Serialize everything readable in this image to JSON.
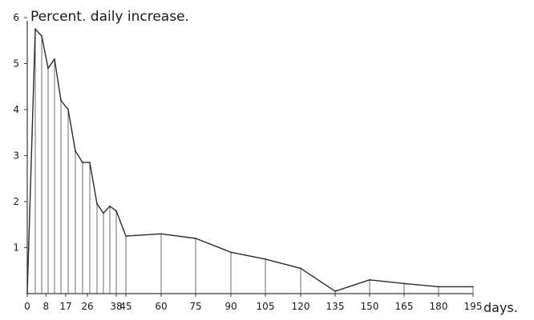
{
  "chart_data": {
    "type": "line",
    "title": "Percent. daily increase.",
    "xlabel": "days.",
    "ylabel": "",
    "x_ticks": [
      0,
      8,
      17,
      26,
      38,
      45,
      60,
      75,
      90,
      105,
      120,
      135,
      150,
      165,
      180,
      195
    ],
    "y_ticks": [
      1,
      2,
      3,
      4,
      5,
      6
    ],
    "xlim": [
      0,
      195
    ],
    "ylim": [
      0,
      6
    ],
    "grid": false,
    "vertical_lines_at_points": true,
    "x": [
      0,
      3,
      6,
      9,
      12,
      15,
      18,
      21,
      24,
      27,
      30,
      33,
      36,
      38,
      45,
      60,
      75,
      90,
      105,
      120,
      135,
      150,
      165,
      180,
      195
    ],
    "values": [
      0,
      5.75,
      5.6,
      4.9,
      5.1,
      4.2,
      4.0,
      3.1,
      2.85,
      2.85,
      1.95,
      1.75,
      1.9,
      1.8,
      1.25,
      1.3,
      1.2,
      0.9,
      0.75,
      0.55,
      0.05,
      0.3,
      0.22,
      0.15,
      0.15
    ]
  }
}
